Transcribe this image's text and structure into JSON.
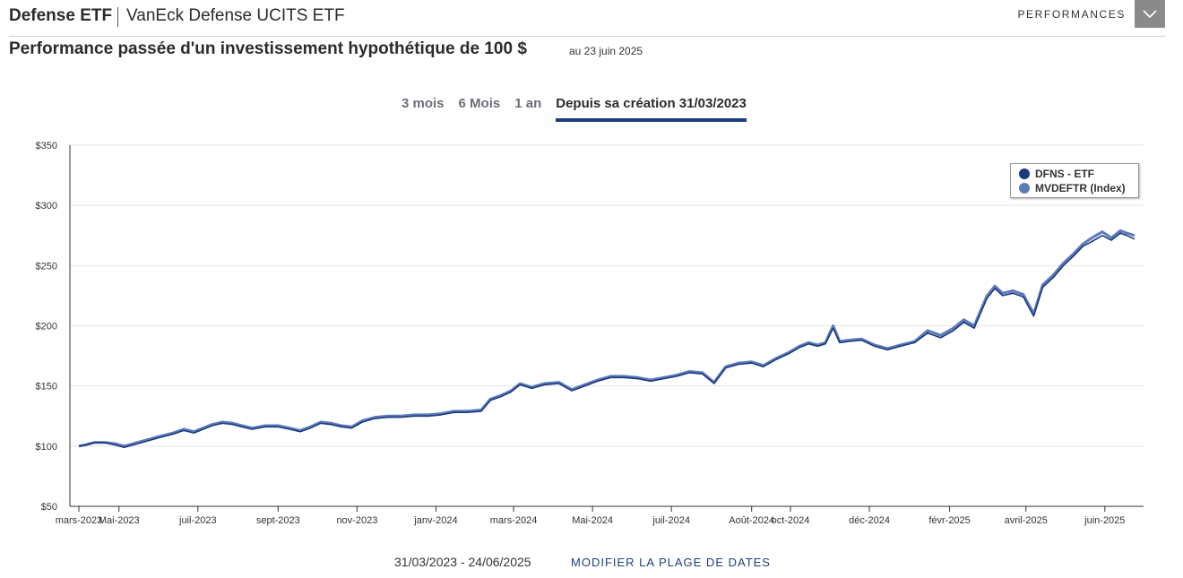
{
  "header": {
    "fund_short": "Defense ETF",
    "fund_long": "VanEck Defense UCITS ETF",
    "menu_label": "PERFORMANCES"
  },
  "subtitle": {
    "title": "Performance passée d'un investissement hypothétique de 100 $",
    "as_of": "au  23 juin 2025"
  },
  "range_tabs": [
    {
      "label": "3 mois",
      "active": false
    },
    {
      "label": "6 Mois",
      "active": false
    },
    {
      "label": "1 an",
      "active": false
    },
    {
      "label": "Depuis sa création 31/03/2023",
      "active": true
    }
  ],
  "footer": {
    "date_range": "31/03/2023 - 24/06/2025",
    "modify_label": "MODIFIER LA PLAGE DE DATES"
  },
  "colors": {
    "etf": "#1a3a80",
    "index": "#5b7bb8",
    "accent": "#1d3f7a",
    "grid": "#e3e3e3"
  },
  "chart_data": {
    "type": "line",
    "title": "",
    "xlabel": "",
    "ylabel": "",
    "ylim": [
      50,
      350
    ],
    "yticks": [
      50,
      100,
      150,
      200,
      250,
      300,
      350
    ],
    "ytick_labels": [
      "$50",
      "$100",
      "$150",
      "$200",
      "$250",
      "$300",
      "$350"
    ],
    "grid": true,
    "legend_position": "top-right",
    "xlim": [
      "2023-03-31",
      "2025-06-24"
    ],
    "xticks": [
      {
        "date": "2023-03-31",
        "label": "mars-2023"
      },
      {
        "date": "2023-05-01",
        "label": "Mai-2023"
      },
      {
        "date": "2023-07-01",
        "label": "juil-2023"
      },
      {
        "date": "2023-09-01",
        "label": "sept-2023"
      },
      {
        "date": "2023-11-01",
        "label": "nov-2023"
      },
      {
        "date": "2024-01-01",
        "label": "janv-2024"
      },
      {
        "date": "2024-03-01",
        "label": "mars-2024"
      },
      {
        "date": "2024-05-01",
        "label": "Mai-2024"
      },
      {
        "date": "2024-07-01",
        "label": "juil-2024"
      },
      {
        "date": "2024-09-01",
        "label": "Août-2024"
      },
      {
        "date": "2024-10-01",
        "label": "oct-2024"
      },
      {
        "date": "2024-12-01",
        "label": "déc-2024"
      },
      {
        "date": "2025-02-01",
        "label": "févr-2025"
      },
      {
        "date": "2025-04-01",
        "label": "avril-2025"
      },
      {
        "date": "2025-06-01",
        "label": "juin-2025"
      }
    ],
    "series": [
      {
        "name": "DFNS - ETF",
        "color": "#1a3a80",
        "points": [
          [
            "2023-03-31",
            100
          ],
          [
            "2023-04-05",
            101
          ],
          [
            "2023-04-12",
            103
          ],
          [
            "2023-04-20",
            103
          ],
          [
            "2023-04-28",
            101
          ],
          [
            "2023-05-05",
            99
          ],
          [
            "2023-05-12",
            101
          ],
          [
            "2023-05-22",
            104
          ],
          [
            "2023-06-01",
            107
          ],
          [
            "2023-06-12",
            110
          ],
          [
            "2023-06-20",
            113
          ],
          [
            "2023-06-28",
            111
          ],
          [
            "2023-07-05",
            114
          ],
          [
            "2023-07-12",
            117
          ],
          [
            "2023-07-20",
            119
          ],
          [
            "2023-07-28",
            118
          ],
          [
            "2023-08-04",
            116
          ],
          [
            "2023-08-12",
            114
          ],
          [
            "2023-08-22",
            116
          ],
          [
            "2023-09-01",
            116
          ],
          [
            "2023-09-10",
            114
          ],
          [
            "2023-09-18",
            112
          ],
          [
            "2023-09-26",
            115
          ],
          [
            "2023-10-04",
            119
          ],
          [
            "2023-10-12",
            118
          ],
          [
            "2023-10-20",
            116
          ],
          [
            "2023-10-28",
            115
          ],
          [
            "2023-11-05",
            120
          ],
          [
            "2023-11-15",
            123
          ],
          [
            "2023-11-25",
            124
          ],
          [
            "2023-12-05",
            124
          ],
          [
            "2023-12-15",
            125
          ],
          [
            "2023-12-26",
            125
          ],
          [
            "2024-01-05",
            126
          ],
          [
            "2024-01-15",
            128
          ],
          [
            "2024-01-25",
            128
          ],
          [
            "2024-02-05",
            129
          ],
          [
            "2024-02-12",
            138
          ],
          [
            "2024-02-20",
            141
          ],
          [
            "2024-02-28",
            145
          ],
          [
            "2024-03-06",
            151
          ],
          [
            "2024-03-15",
            148
          ],
          [
            "2024-03-25",
            151
          ],
          [
            "2024-04-05",
            152
          ],
          [
            "2024-04-15",
            146
          ],
          [
            "2024-04-25",
            150
          ],
          [
            "2024-05-05",
            154
          ],
          [
            "2024-05-15",
            157
          ],
          [
            "2024-05-25",
            157
          ],
          [
            "2024-06-05",
            156
          ],
          [
            "2024-06-15",
            154
          ],
          [
            "2024-06-25",
            156
          ],
          [
            "2024-07-05",
            158
          ],
          [
            "2024-07-15",
            161
          ],
          [
            "2024-07-25",
            160
          ],
          [
            "2024-08-03",
            152
          ],
          [
            "2024-08-12",
            165
          ],
          [
            "2024-08-22",
            168
          ],
          [
            "2024-09-01",
            169
          ],
          [
            "2024-09-10",
            166
          ],
          [
            "2024-09-20",
            172
          ],
          [
            "2024-09-30",
            177
          ],
          [
            "2024-10-08",
            182
          ],
          [
            "2024-10-15",
            185
          ],
          [
            "2024-10-22",
            183
          ],
          [
            "2024-10-28",
            185
          ],
          [
            "2024-11-03",
            198
          ],
          [
            "2024-11-08",
            186
          ],
          [
            "2024-11-15",
            187
          ],
          [
            "2024-11-25",
            188
          ],
          [
            "2024-12-05",
            183
          ],
          [
            "2024-12-15",
            180
          ],
          [
            "2024-12-25",
            183
          ],
          [
            "2025-01-05",
            186
          ],
          [
            "2025-01-15",
            194
          ],
          [
            "2025-01-25",
            190
          ],
          [
            "2025-02-04",
            196
          ],
          [
            "2025-02-12",
            203
          ],
          [
            "2025-02-20",
            198
          ],
          [
            "2025-03-02",
            223
          ],
          [
            "2025-03-08",
            231
          ],
          [
            "2025-03-14",
            225
          ],
          [
            "2025-03-22",
            227
          ],
          [
            "2025-03-30",
            224
          ],
          [
            "2025-04-07",
            208
          ],
          [
            "2025-04-14",
            232
          ],
          [
            "2025-04-22",
            240
          ],
          [
            "2025-04-30",
            250
          ],
          [
            "2025-05-08",
            258
          ],
          [
            "2025-05-15",
            266
          ],
          [
            "2025-05-22",
            270
          ],
          [
            "2025-05-30",
            275
          ],
          [
            "2025-06-06",
            271
          ],
          [
            "2025-06-13",
            277
          ],
          [
            "2025-06-18",
            275
          ],
          [
            "2025-06-24",
            272
          ]
        ]
      },
      {
        "name": "MVDEFTR (Index)",
        "color": "#5b7bb8",
        "points": [
          [
            "2023-03-31",
            100
          ],
          [
            "2023-04-05",
            101
          ],
          [
            "2023-04-12",
            103
          ],
          [
            "2023-04-20",
            103
          ],
          [
            "2023-04-28",
            102
          ],
          [
            "2023-05-05",
            100
          ],
          [
            "2023-05-12",
            102
          ],
          [
            "2023-05-22",
            105
          ],
          [
            "2023-06-01",
            108
          ],
          [
            "2023-06-12",
            111
          ],
          [
            "2023-06-20",
            114
          ],
          [
            "2023-06-28",
            112
          ],
          [
            "2023-07-05",
            115
          ],
          [
            "2023-07-12",
            118
          ],
          [
            "2023-07-20",
            120
          ],
          [
            "2023-07-28",
            119
          ],
          [
            "2023-08-04",
            117
          ],
          [
            "2023-08-12",
            115
          ],
          [
            "2023-08-22",
            117
          ],
          [
            "2023-09-01",
            117
          ],
          [
            "2023-09-10",
            115
          ],
          [
            "2023-09-18",
            113
          ],
          [
            "2023-09-26",
            116
          ],
          [
            "2023-10-04",
            120
          ],
          [
            "2023-10-12",
            119
          ],
          [
            "2023-10-20",
            117
          ],
          [
            "2023-10-28",
            116
          ],
          [
            "2023-11-05",
            121
          ],
          [
            "2023-11-15",
            124
          ],
          [
            "2023-11-25",
            125
          ],
          [
            "2023-12-05",
            125
          ],
          [
            "2023-12-15",
            126
          ],
          [
            "2023-12-26",
            126
          ],
          [
            "2024-01-05",
            127
          ],
          [
            "2024-01-15",
            129
          ],
          [
            "2024-01-25",
            129
          ],
          [
            "2024-02-05",
            130
          ],
          [
            "2024-02-12",
            139
          ],
          [
            "2024-02-20",
            142
          ],
          [
            "2024-02-28",
            146
          ],
          [
            "2024-03-06",
            152
          ],
          [
            "2024-03-15",
            149
          ],
          [
            "2024-03-25",
            152
          ],
          [
            "2024-04-05",
            153
          ],
          [
            "2024-04-15",
            147
          ],
          [
            "2024-04-25",
            151
          ],
          [
            "2024-05-05",
            155
          ],
          [
            "2024-05-15",
            158
          ],
          [
            "2024-05-25",
            158
          ],
          [
            "2024-06-05",
            157
          ],
          [
            "2024-06-15",
            155
          ],
          [
            "2024-06-25",
            157
          ],
          [
            "2024-07-05",
            159
          ],
          [
            "2024-07-15",
            162
          ],
          [
            "2024-07-25",
            161
          ],
          [
            "2024-08-03",
            153
          ],
          [
            "2024-08-12",
            166
          ],
          [
            "2024-08-22",
            169
          ],
          [
            "2024-09-01",
            170
          ],
          [
            "2024-09-10",
            167
          ],
          [
            "2024-09-20",
            173
          ],
          [
            "2024-09-30",
            178
          ],
          [
            "2024-10-08",
            183
          ],
          [
            "2024-10-15",
            186
          ],
          [
            "2024-10-22",
            184
          ],
          [
            "2024-10-28",
            186
          ],
          [
            "2024-11-03",
            200
          ],
          [
            "2024-11-08",
            187
          ],
          [
            "2024-11-15",
            188
          ],
          [
            "2024-11-25",
            189
          ],
          [
            "2024-12-05",
            184
          ],
          [
            "2024-12-15",
            181
          ],
          [
            "2024-12-25",
            184
          ],
          [
            "2025-01-05",
            187
          ],
          [
            "2025-01-15",
            196
          ],
          [
            "2025-01-25",
            192
          ],
          [
            "2025-02-04",
            198
          ],
          [
            "2025-02-12",
            205
          ],
          [
            "2025-02-20",
            200
          ],
          [
            "2025-03-02",
            225
          ],
          [
            "2025-03-08",
            233
          ],
          [
            "2025-03-14",
            227
          ],
          [
            "2025-03-22",
            229
          ],
          [
            "2025-03-30",
            226
          ],
          [
            "2025-04-07",
            210
          ],
          [
            "2025-04-14",
            234
          ],
          [
            "2025-04-22",
            242
          ],
          [
            "2025-04-30",
            252
          ],
          [
            "2025-05-08",
            260
          ],
          [
            "2025-05-15",
            268
          ],
          [
            "2025-05-22",
            273
          ],
          [
            "2025-05-30",
            278
          ],
          [
            "2025-06-06",
            273
          ],
          [
            "2025-06-13",
            279
          ],
          [
            "2025-06-18",
            277
          ],
          [
            "2025-06-24",
            275
          ]
        ]
      }
    ]
  }
}
